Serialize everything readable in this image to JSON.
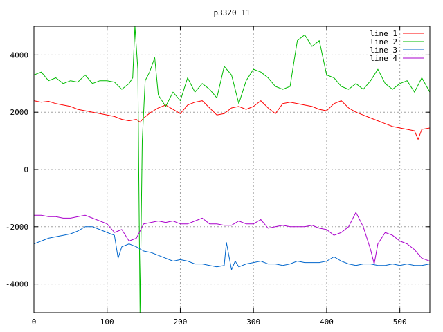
{
  "chart_data": {
    "type": "line",
    "title": "p3320_11",
    "xlabel": "",
    "ylabel": "",
    "xlim": [
      0,
      541
    ],
    "ylim": [
      -5000,
      5000
    ],
    "x_ticks": [
      0,
      100,
      200,
      300,
      400,
      500
    ],
    "y_ticks": [
      -4000,
      -2000,
      0,
      2000,
      4000
    ],
    "grid": true,
    "legend_position": "top-right",
    "series": [
      {
        "name": "line 1",
        "color": "#ff0000",
        "x": [
          0,
          10,
          20,
          30,
          40,
          50,
          60,
          70,
          80,
          90,
          100,
          110,
          120,
          130,
          140,
          145,
          150,
          160,
          170,
          180,
          190,
          200,
          210,
          220,
          230,
          240,
          250,
          260,
          270,
          280,
          290,
          300,
          310,
          320,
          330,
          340,
          350,
          360,
          370,
          380,
          390,
          400,
          410,
          420,
          430,
          440,
          450,
          460,
          470,
          480,
          490,
          500,
          510,
          520,
          525,
          530,
          541
        ],
        "values": [
          2400,
          2350,
          2380,
          2300,
          2250,
          2200,
          2100,
          2050,
          2000,
          1950,
          1900,
          1850,
          1750,
          1700,
          1750,
          1650,
          1800,
          2000,
          2150,
          2250,
          2100,
          1950,
          2250,
          2350,
          2400,
          2150,
          1900,
          1950,
          2150,
          2200,
          2100,
          2200,
          2400,
          2150,
          1950,
          2300,
          2350,
          2300,
          2250,
          2200,
          2100,
          2050,
          2300,
          2400,
          2150,
          2000,
          1900,
          1800,
          1700,
          1600,
          1500,
          1450,
          1400,
          1350,
          1050,
          1400,
          1450
        ]
      },
      {
        "name": "line 2",
        "color": "#00bb00",
        "x": [
          0,
          10,
          20,
          30,
          40,
          50,
          60,
          70,
          80,
          90,
          100,
          110,
          120,
          125,
          130,
          135,
          138,
          142,
          145,
          148,
          152,
          158,
          165,
          170,
          180,
          190,
          200,
          210,
          220,
          230,
          240,
          250,
          260,
          270,
          280,
          290,
          300,
          310,
          320,
          330,
          340,
          350,
          355,
          360,
          370,
          380,
          390,
          400,
          410,
          420,
          430,
          440,
          450,
          460,
          470,
          480,
          490,
          500,
          510,
          520,
          530,
          541
        ],
        "values": [
          3300,
          3400,
          3100,
          3200,
          3000,
          3100,
          3050,
          3300,
          3000,
          3100,
          3100,
          3050,
          2800,
          2900,
          3000,
          3200,
          5000,
          3500,
          -5000,
          1000,
          3100,
          3400,
          3900,
          2600,
          2200,
          2700,
          2400,
          3200,
          2700,
          3000,
          2800,
          2500,
          3600,
          3300,
          2300,
          3100,
          3500,
          3400,
          3200,
          2900,
          2800,
          2900,
          3700,
          4500,
          4700,
          4300,
          4500,
          3300,
          3200,
          2900,
          2800,
          3000,
          2800,
          3100,
          3500,
          3000,
          2800,
          3000,
          3100,
          2700,
          3200,
          2700
        ]
      },
      {
        "name": "line 3",
        "color": "#0066cc",
        "x": [
          0,
          10,
          20,
          30,
          40,
          50,
          60,
          70,
          80,
          90,
          100,
          110,
          115,
          120,
          130,
          140,
          150,
          160,
          170,
          180,
          190,
          200,
          210,
          220,
          230,
          240,
          250,
          260,
          263,
          270,
          275,
          280,
          290,
          300,
          310,
          320,
          330,
          340,
          350,
          360,
          370,
          380,
          390,
          400,
          410,
          420,
          430,
          440,
          450,
          460,
          470,
          480,
          490,
          500,
          510,
          520,
          530,
          541
        ],
        "values": [
          -2600,
          -2500,
          -2400,
          -2350,
          -2300,
          -2250,
          -2150,
          -2000,
          -2000,
          -2100,
          -2200,
          -2300,
          -3100,
          -2700,
          -2600,
          -2700,
          -2850,
          -2900,
          -3000,
          -3100,
          -3200,
          -3150,
          -3200,
          -3300,
          -3300,
          -3350,
          -3400,
          -3350,
          -2550,
          -3500,
          -3200,
          -3400,
          -3300,
          -3250,
          -3200,
          -3300,
          -3300,
          -3350,
          -3300,
          -3200,
          -3250,
          -3250,
          -3250,
          -3200,
          -3050,
          -3200,
          -3300,
          -3350,
          -3300,
          -3300,
          -3350,
          -3350,
          -3300,
          -3350,
          -3300,
          -3350,
          -3350,
          -3300
        ]
      },
      {
        "name": "line 4",
        "color": "#aa00cc",
        "x": [
          0,
          10,
          20,
          30,
          40,
          50,
          60,
          70,
          80,
          90,
          100,
          110,
          120,
          130,
          140,
          150,
          160,
          170,
          180,
          190,
          200,
          210,
          220,
          230,
          240,
          250,
          260,
          270,
          280,
          290,
          300,
          310,
          320,
          330,
          340,
          350,
          360,
          370,
          380,
          390,
          400,
          410,
          420,
          430,
          440,
          450,
          460,
          465,
          470,
          480,
          490,
          500,
          510,
          520,
          530,
          541
        ],
        "values": [
          -1600,
          -1600,
          -1650,
          -1650,
          -1700,
          -1700,
          -1650,
          -1600,
          -1700,
          -1800,
          -1900,
          -2200,
          -2100,
          -2500,
          -2400,
          -1900,
          -1850,
          -1800,
          -1850,
          -1800,
          -1900,
          -1900,
          -1800,
          -1700,
          -1900,
          -1900,
          -1950,
          -1950,
          -1800,
          -1900,
          -1900,
          -1750,
          -2050,
          -2000,
          -1950,
          -2000,
          -2000,
          -2000,
          -1950,
          -2050,
          -2100,
          -2300,
          -2200,
          -2000,
          -1500,
          -2000,
          -2800,
          -3300,
          -2600,
          -2200,
          -2300,
          -2500,
          -2600,
          -2800,
          -3100,
          -3200
        ]
      }
    ]
  }
}
